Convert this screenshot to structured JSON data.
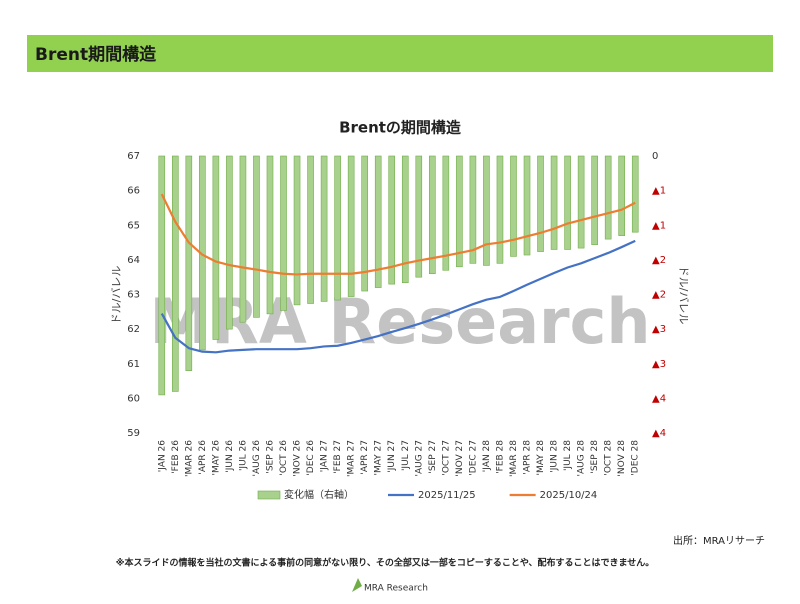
{
  "header": {
    "title": "Brent期間構造"
  },
  "chart_data": {
    "type": "combo",
    "title": "Brentの期間構造",
    "y_label": "ドル/バレル",
    "y2_label": "ドル/バレル",
    "categories": [
      "'JAN 26",
      "'FEB 26",
      "'MAR 26",
      "'APR 26",
      "'MAY 26",
      "'JUN 26",
      "'JUL 26",
      "'AUG 26",
      "'SEP 26",
      "'OCT 26",
      "'NOV 26",
      "'DEC 26",
      "'JAN 27",
      "'FEB 27",
      "'MAR 27",
      "'APR 27",
      "'MAY 27",
      "'JUN 27",
      "'JUL 27",
      "'AUG 27",
      "'SEP 27",
      "'OCT 27",
      "'NOV 27",
      "'DEC 27",
      "'JAN 28",
      "'FEB 28",
      "'MAR 28",
      "'APR 28",
      "'MAY 28",
      "'JUN 28",
      "'JUL 28",
      "'AUG 28",
      "'SEP 28",
      "'OCT 28",
      "'NOV 28",
      "'DEC 28"
    ],
    "series": [
      {
        "name": "変化幅（右軸）",
        "type": "bar",
        "axis": "y2",
        "color": "#a9d18e",
        "values": [
          -3.45,
          -3.4,
          -3.1,
          -2.8,
          -2.65,
          -2.5,
          -2.4,
          -2.33,
          -2.28,
          -2.23,
          -2.15,
          -2.13,
          -2.1,
          -2.08,
          -2.03,
          -1.95,
          -1.9,
          -1.85,
          -1.83,
          -1.75,
          -1.7,
          -1.65,
          -1.6,
          -1.55,
          -1.58,
          -1.55,
          -1.45,
          -1.43,
          -1.38,
          -1.35,
          -1.35,
          -1.33,
          -1.28,
          -1.2,
          -1.15,
          -1.1
        ]
      },
      {
        "name": "2025/11/25",
        "type": "line",
        "color": "#4472c4",
        "values": [
          62.45,
          61.75,
          61.45,
          61.35,
          61.33,
          61.38,
          61.4,
          61.42,
          61.42,
          61.42,
          61.42,
          61.45,
          61.5,
          61.52,
          61.6,
          61.7,
          61.8,
          61.92,
          62.03,
          62.15,
          62.28,
          62.42,
          62.57,
          62.72,
          62.85,
          62.93,
          63.1,
          63.28,
          63.45,
          63.62,
          63.78,
          63.9,
          64.05,
          64.2,
          64.37,
          64.55
        ]
      },
      {
        "name": "2025/10/24",
        "type": "line",
        "color": "#ed7d31",
        "values": [
          65.9,
          65.1,
          64.5,
          64.15,
          63.95,
          63.85,
          63.78,
          63.72,
          63.65,
          63.6,
          63.58,
          63.6,
          63.6,
          63.6,
          63.6,
          63.65,
          63.72,
          63.8,
          63.9,
          63.98,
          64.05,
          64.12,
          64.2,
          64.28,
          64.45,
          64.5,
          64.58,
          64.68,
          64.78,
          64.9,
          65.05,
          65.15,
          65.25,
          65.35,
          65.45,
          65.65
        ]
      }
    ],
    "ylim": [
      59,
      67
    ],
    "yticks": [
      59,
      60,
      61,
      62,
      63,
      64,
      65,
      66,
      67
    ],
    "y2lim": [
      -4,
      0
    ],
    "y2ticks": [
      {
        "value": -4,
        "label": "▲4"
      },
      {
        "value": -3.5,
        "label": "▲4"
      },
      {
        "value": -3,
        "label": "▲3"
      },
      {
        "value": -2.5,
        "label": "▲3"
      },
      {
        "value": -2,
        "label": "▲2"
      },
      {
        "value": -1.5,
        "label": "▲2"
      },
      {
        "value": -1,
        "label": "▲1"
      },
      {
        "value": -0.5,
        "label": "▲1"
      },
      0
    ],
    "y2tick_color": "#c00000",
    "grid": false,
    "legend": "bottom"
  },
  "watermark": "MRA Research",
  "source": "出所：MRAリサーチ",
  "notice": "※本スライドの情報を当社の文書による事前の同意がない限り、その全部又は一部をコピーすることや、配布することはできません。",
  "logo": "MRA Research"
}
